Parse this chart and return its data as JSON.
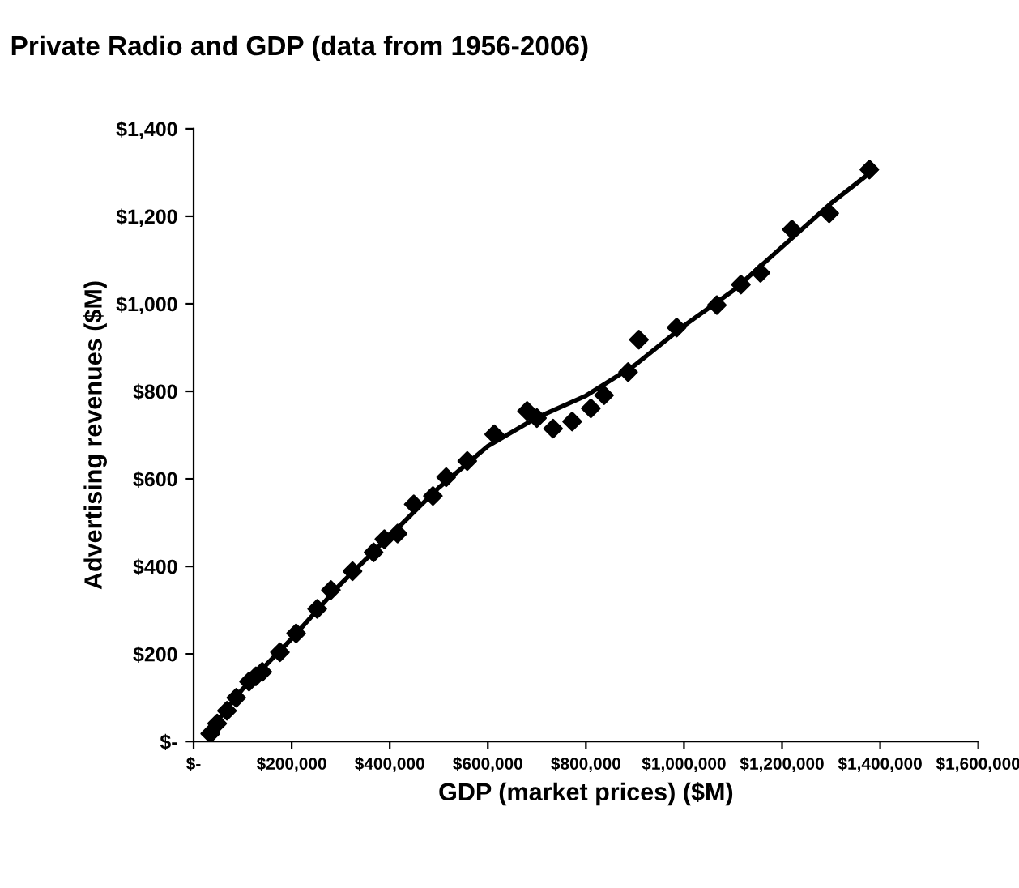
{
  "chart_data": {
    "type": "scatter",
    "title": "Private Radio and GDP (data from 1956-2006)",
    "xlabel": "GDP (market prices) ($M)",
    "ylabel": "Advertising revenues ($M)",
    "xlim": [
      0,
      1600000
    ],
    "ylim": [
      0,
      1400
    ],
    "xticks": [
      {
        "value": 0,
        "label": "$-"
      },
      {
        "value": 200000,
        "label": "$200,000"
      },
      {
        "value": 400000,
        "label": "$400,000"
      },
      {
        "value": 600000,
        "label": "$600,000"
      },
      {
        "value": 800000,
        "label": "$800,000"
      },
      {
        "value": 1000000,
        "label": "$1,000,000"
      },
      {
        "value": 1200000,
        "label": "$1,200,000"
      },
      {
        "value": 1400000,
        "label": "$1,400,000"
      },
      {
        "value": 1600000,
        "label": "$1,600,000"
      }
    ],
    "yticks": [
      {
        "value": 0,
        "label": "$-"
      },
      {
        "value": 200,
        "label": "$200"
      },
      {
        "value": 400,
        "label": "$400"
      },
      {
        "value": 600,
        "label": "$600"
      },
      {
        "value": 800,
        "label": "$800"
      },
      {
        "value": 1000,
        "label": "$1,000"
      },
      {
        "value": 1200,
        "label": "$1,200"
      },
      {
        "value": 1400,
        "label": "$1,400"
      }
    ],
    "grid": false,
    "marker": "diamond",
    "series": [
      {
        "color": "#000000",
        "x": [
          34000,
          48000,
          68000,
          87000,
          113000,
          127000,
          140000,
          173000,
          176000,
          209000,
          252000,
          280000,
          324000,
          367000,
          389000,
          416000,
          449000,
          488000,
          515000,
          558000,
          613000,
          673000,
          680000,
          700000,
          733000,
          772000,
          810000,
          837000,
          886000,
          908000,
          985000,
          1067000,
          1116000,
          1156000,
          1220000,
          1296000,
          1378000
        ],
        "values": [
          18,
          41,
          70,
          100,
          137,
          149,
          159,
          null,
          204,
          247,
          303,
          346,
          389,
          432,
          462,
          475,
          542,
          561,
          604,
          641,
          702,
          null,
          755,
          739,
          715,
          731,
          761,
          791,
          844,
          918,
          946,
          997,
          1044,
          1071,
          1170,
          1207,
          1307
        ]
      },
      {
        "type": "line",
        "color": "#000000",
        "line_style": "solid",
        "marker": "none",
        "x": [
          30000,
          100000,
          200000,
          300000,
          400000,
          500000,
          600000,
          700000,
          800000,
          900000,
          1000000,
          1100000,
          1200000,
          1300000,
          1380000
        ],
        "values": [
          20,
          120,
          235,
          360,
          470,
          580,
          675,
          740,
          790,
          860,
          950,
          1030,
          1130,
          1230,
          1300
        ]
      }
    ]
  }
}
